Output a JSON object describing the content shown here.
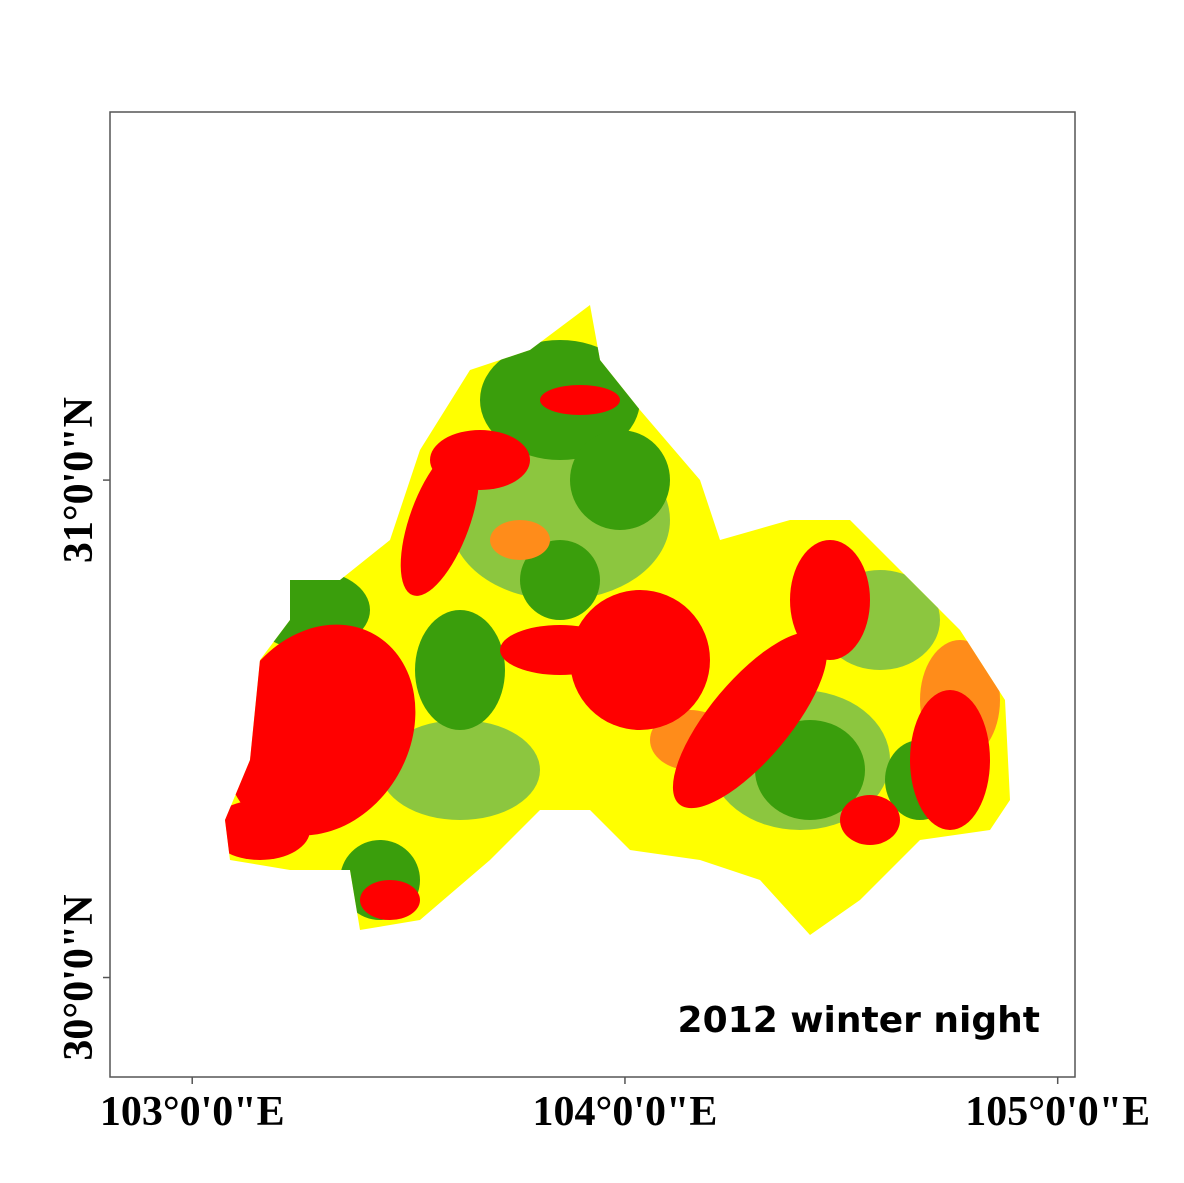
{
  "map": {
    "label": "2012 winter night",
    "xlim": [
      102.81,
      105.04
    ],
    "ylim": [
      29.8,
      31.74
    ],
    "xticks": [
      {
        "value": 103,
        "label": "103°0'0\"E"
      },
      {
        "value": 104,
        "label": "104°0'0\"E"
      },
      {
        "value": 105,
        "label": "105°0'0\"E"
      }
    ],
    "yticks": [
      {
        "value": 30,
        "label": "30°0'0\"N"
      },
      {
        "value": 31,
        "label": "31°0'0\"N"
      }
    ]
  }
}
